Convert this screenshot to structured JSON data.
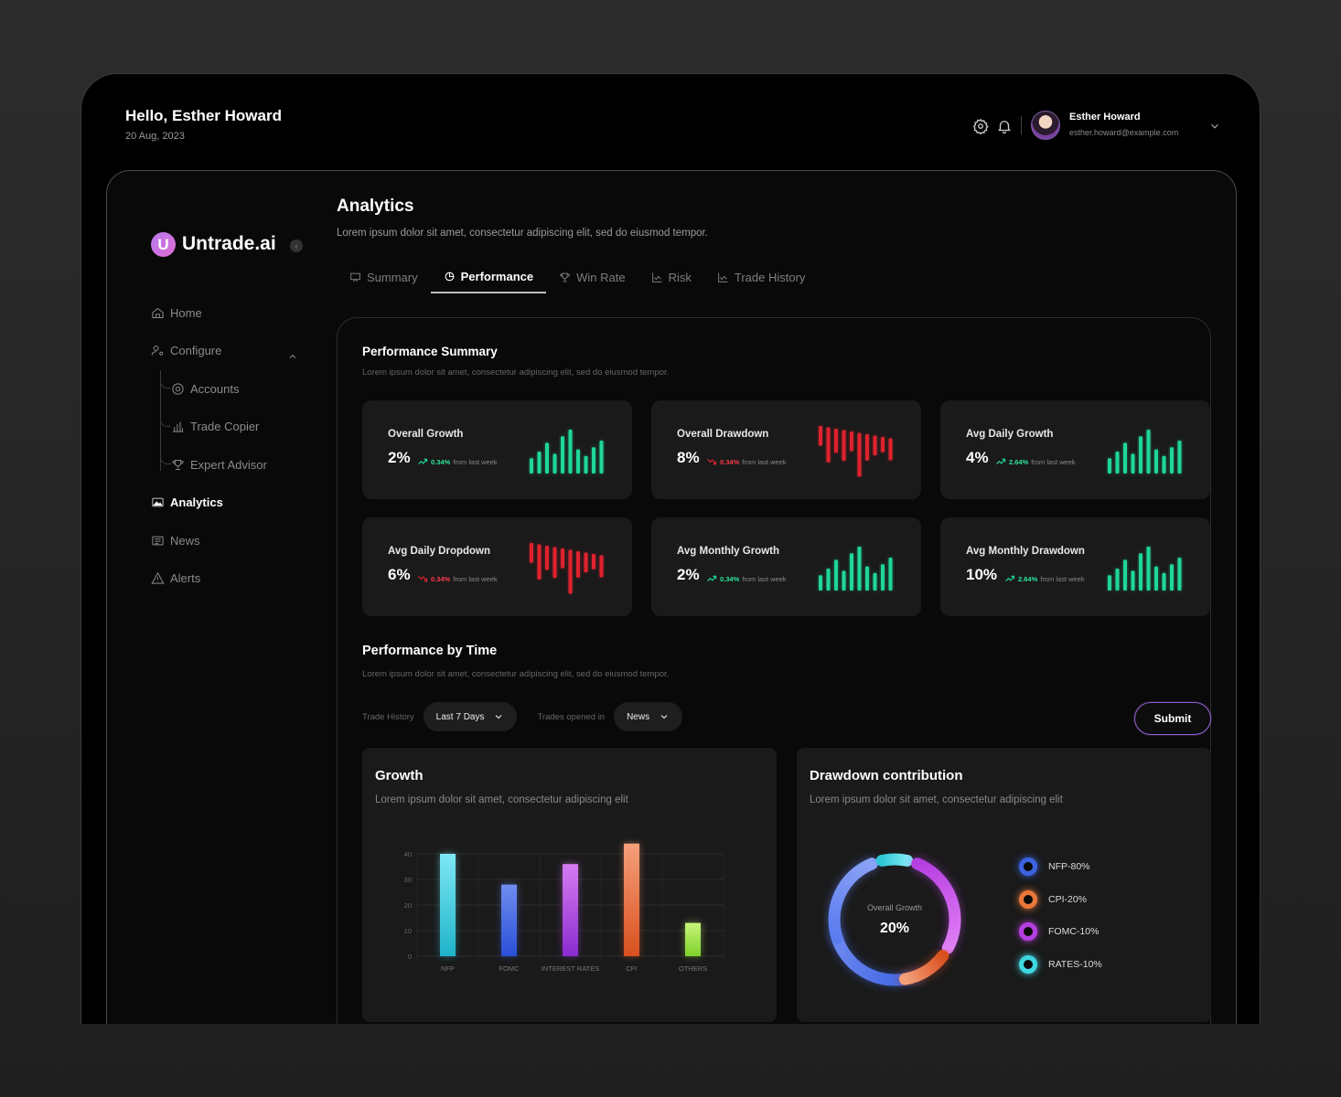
{
  "header": {
    "greeting": "Hello, Esther Howard",
    "date": "20 Aug, 2023",
    "user_name": "Esther Howard",
    "user_email": "esther.howard@example.com",
    "icons": [
      "gear-icon",
      "bell-icon",
      "chevron-down-icon"
    ]
  },
  "sidebar": {
    "logo_letter": "U",
    "logo_text": "Untrade.ai",
    "items": [
      {
        "label": "Home",
        "icon": "home-icon"
      },
      {
        "label": "Configure",
        "icon": "user-gear-icon"
      },
      {
        "label": "Accounts",
        "icon": "at-icon"
      },
      {
        "label": "Trade Copier",
        "icon": "bar-chart-icon"
      },
      {
        "label": "Expert Advisor",
        "icon": "trophy-icon"
      },
      {
        "label": "Analytics",
        "icon": "image-icon",
        "active": true
      },
      {
        "label": "News",
        "icon": "news-icon"
      },
      {
        "label": "Alerts",
        "icon": "warning-icon"
      }
    ]
  },
  "main": {
    "title": "Analytics",
    "subtitle": "Lorem ipsum dolor sit amet, consectetur adipiscing elit, sed do eiusmod tempor.",
    "tabs": [
      {
        "label": "Summary",
        "icon": "presentation-icon"
      },
      {
        "label": "Performance",
        "icon": "pie-icon",
        "active": true
      },
      {
        "label": "Win Rate",
        "icon": "trophy-icon"
      },
      {
        "label": "Risk",
        "icon": "line-chart-icon"
      },
      {
        "label": "Trade History",
        "icon": "line-chart-icon"
      }
    ]
  },
  "summary": {
    "title": "Performance Summary",
    "subtitle": "Lorem ipsum dolor sit amet, consectetur adipiscing elit, sed do eiusmod tempor.",
    "cards": [
      {
        "label": "Overall Growth",
        "value": "2%",
        "delta": "0.34%",
        "delta_text": "from last week",
        "trend": "up"
      },
      {
        "label": "Overall Drawdown",
        "value": "8%",
        "delta": "0.34%",
        "delta_text": "from last week",
        "trend": "down"
      },
      {
        "label": "Avg Daily Growth",
        "value": "4%",
        "delta": "2.64%",
        "delta_text": "from last week",
        "trend": "up"
      },
      {
        "label": "Avg Daily Dropdown",
        "value": "6%",
        "delta": "0.34%",
        "delta_text": "from last week",
        "trend": "down"
      },
      {
        "label": "Avg Monthly Growth",
        "value": "2%",
        "delta": "0.34%",
        "delta_text": "from last week",
        "trend": "up"
      },
      {
        "label": "Avg Monthly Drawdown",
        "value": "10%",
        "delta": "2.64%",
        "delta_text": "from last week",
        "trend": "up"
      }
    ],
    "colors": {
      "up": "#1fd69a",
      "down": "#e0222e"
    }
  },
  "by_time": {
    "title": "Performance by Time",
    "subtitle": "Lorem ipsum dolor sit amet, consectetur adipiscing elit, sed do eiusmod tempor.",
    "filter1_label": "Trade History",
    "filter1_value": "Last 7 Days",
    "filter2_label": "Trades opened in",
    "filter2_value": "News",
    "submit": "Submit"
  },
  "growth": {
    "title": "Growth",
    "subtitle": "Lorem ipsum dolor sit amet, consectetur adipiscing elit"
  },
  "drawdown": {
    "title": "Drawdown contribution",
    "subtitle": "Lorem ipsum dolor sit amet, consectetur adipiscing elit",
    "center_label": "Overall Growth",
    "center_value": "20%",
    "legend": [
      {
        "label": "NFP-80%",
        "color": "#3b63e0"
      },
      {
        "label": "CPI-20%",
        "color": "#e8773a"
      },
      {
        "label": "FOMC-10%",
        "color": "#b53fe0"
      },
      {
        "label": "RATES-10%",
        "color": "#3fd6e0"
      }
    ]
  },
  "chart_data": [
    {
      "type": "bar",
      "categories": [
        "NFP",
        "FOMC",
        "INTEREST RATES",
        "CPI",
        "OTHERS"
      ],
      "values": [
        40,
        28,
        36,
        44,
        13
      ],
      "ylim": [
        0,
        40
      ],
      "yticks": [
        0,
        10,
        20,
        30,
        40
      ],
      "grid": true,
      "colors": [
        [
          "#7ee8f5",
          "#1fb3c9"
        ],
        [
          "#6f8df0",
          "#2a4fd6"
        ],
        [
          "#d77cf0",
          "#8a2bd0"
        ],
        [
          "#f5a07a",
          "#d9501f"
        ],
        [
          "#c8f57a",
          "#7fd12a"
        ]
      ]
    },
    {
      "type": "pie",
      "title": "Drawdown contribution",
      "labels": [
        "NFP",
        "CPI",
        "FOMC",
        "RATES"
      ],
      "values": [
        80,
        20,
        10,
        10
      ]
    }
  ]
}
